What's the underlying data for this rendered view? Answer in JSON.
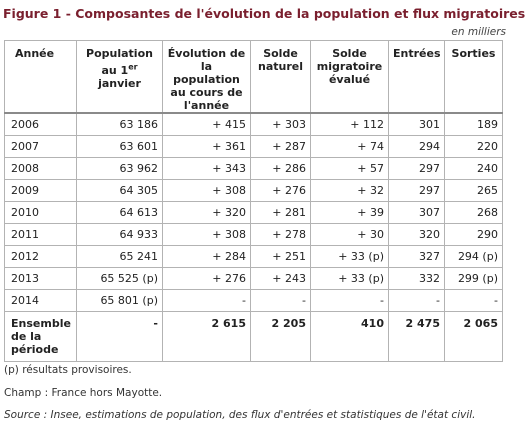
{
  "title": "Figure 1 - Composantes de l'évolution de la population et flux migratoires",
  "unit_note": "en milliers",
  "table": {
    "headers": [
      "Année",
      "Population au 1er janvier",
      "Évolution de la population au cours de l'année",
      "Solde naturel",
      "Solde migratoire évalué",
      "Entrées",
      "Sorties"
    ],
    "rows": [
      [
        "2006",
        "63 186",
        "+ 415",
        "+ 303",
        "+ 112",
        "301",
        "189"
      ],
      [
        "2007",
        "63 601",
        "+ 361",
        "+ 287",
        "+ 74",
        "294",
        "220"
      ],
      [
        "2008",
        "63 962",
        "+ 343",
        "+ 286",
        "+ 57",
        "297",
        "240"
      ],
      [
        "2009",
        "64 305",
        "+ 308",
        "+ 276",
        "+ 32",
        "297",
        "265"
      ],
      [
        "2010",
        "64 613",
        "+ 320",
        "+ 281",
        "+ 39",
        "307",
        "268"
      ],
      [
        "2011",
        "64 933",
        "+ 308",
        "+ 278",
        "+ 30",
        "320",
        "290"
      ],
      [
        "2012",
        "65 241",
        "+ 284",
        "+ 251",
        "+ 33 (p)",
        "327",
        "294 (p)"
      ],
      [
        "2013",
        "65 525 (p)",
        "+ 276",
        "+ 243",
        "+ 33 (p)",
        "332",
        "299 (p)"
      ],
      [
        "2014",
        "65 801 (p)",
        "-",
        "-",
        "-",
        "-",
        "-"
      ]
    ],
    "total_row": [
      "Ensemble de la période",
      "-",
      "2 615",
      "2 205",
      "410",
      "2 475",
      "2 065"
    ]
  },
  "footnotes": {
    "provisional": "(p) résultats provisoires.",
    "scope": "Champ : France hors Mayotte.",
    "source": "Source : Insee, estimations de population, des flux d'entrées et statistiques de l'état civil."
  }
}
